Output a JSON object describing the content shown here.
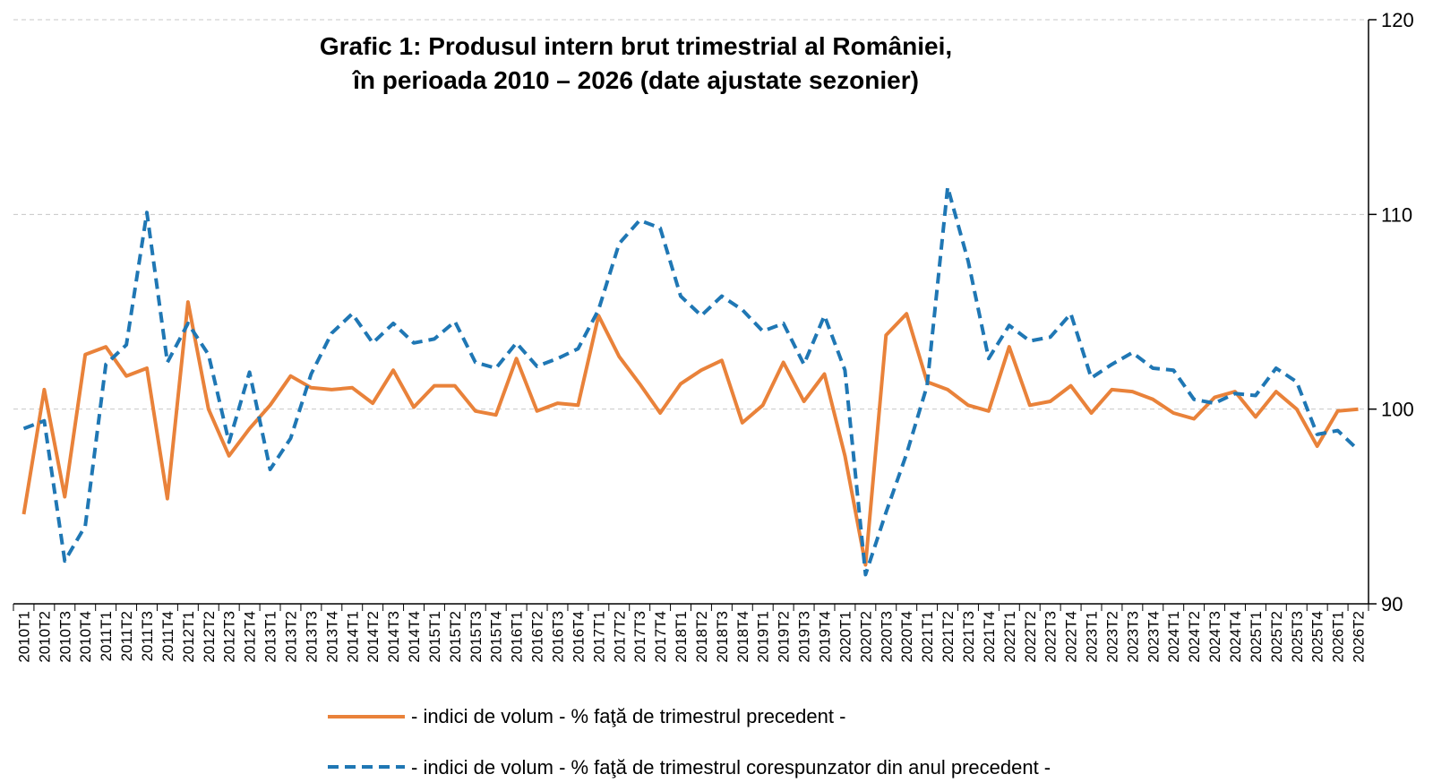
{
  "chart_data": {
    "type": "line",
    "title": "Grafic 1: Produsul intern brut trimestrial al României,",
    "subtitle": "în perioada 2010 – 2026 (date ajustate sezonier)",
    "ylim": [
      90,
      120
    ],
    "yticks": [
      "90",
      "100",
      "110",
      "120"
    ],
    "grid": true,
    "legend_position": "bottom",
    "categories": [
      "2010T1",
      "2010T2",
      "2010T3",
      "2010T4",
      "2011T1",
      "2011T2",
      "2011T3",
      "2011T4",
      "2012T1",
      "2012T2",
      "2012T3",
      "2012T4",
      "2013T1",
      "2013T2",
      "2013T3",
      "2013T4",
      "2014T1",
      "2014T2",
      "2014T3",
      "2014T4",
      "2015T1",
      "2015T2",
      "2015T3",
      "2015T4",
      "2016T1",
      "2016T2",
      "2016T3",
      "2016T4",
      "2017T1",
      "2017T2",
      "2017T3",
      "2017T4",
      "2018T1",
      "2018T2",
      "2018T3",
      "2018T4",
      "2019T1",
      "2019T2",
      "2019T3",
      "2019T4",
      "2020T1",
      "2020T2",
      "2020T3",
      "2020T4",
      "2021T1",
      "2021T2",
      "2021T3",
      "2021T4",
      "2022T1",
      "2022T2",
      "2022T3",
      "2022T4",
      "2023T1",
      "2023T2",
      "2023T3",
      "2023T4",
      "2024T1",
      "2024T2",
      "2024T3",
      "2024T4",
      "2025T1",
      "2025T2",
      "2025T3",
      "2025T4",
      "2026T1",
      "2026T2"
    ],
    "series": [
      {
        "name": "- indici de volum - % faţă de trimestrul precedent -",
        "color": "#e9823a",
        "style": "solid",
        "values": [
          94.6,
          101.0,
          95.5,
          102.8,
          103.2,
          101.7,
          102.1,
          95.4,
          105.5,
          100.0,
          97.6,
          99.0,
          100.2,
          101.7,
          101.1,
          101.0,
          101.1,
          100.3,
          102.0,
          100.1,
          101.2,
          101.2,
          99.9,
          99.7,
          102.6,
          99.9,
          100.3,
          100.2,
          104.8,
          102.7,
          101.3,
          99.8,
          101.3,
          102.0,
          102.5,
          99.3,
          100.2,
          102.4,
          100.4,
          101.8,
          97.6,
          92.0,
          103.8,
          104.9,
          101.4,
          101.0,
          100.2,
          99.9,
          103.2,
          100.2,
          100.4,
          101.2,
          99.8,
          101.0,
          100.9,
          100.5,
          99.8,
          99.5,
          100.6,
          100.9,
          99.6,
          100.9,
          100.0,
          98.1,
          99.9,
          100.0
        ]
      },
      {
        "name": "- indici de volum - % faţă de trimestrul corespunzator din anul precedent -",
        "color": "#1f77b4",
        "style": "dashed",
        "values": [
          99.0,
          99.4,
          92.2,
          94.0,
          102.3,
          103.3,
          110.1,
          102.4,
          104.4,
          102.8,
          98.3,
          101.9,
          96.9,
          98.5,
          101.8,
          103.9,
          104.9,
          103.4,
          104.4,
          103.4,
          103.6,
          104.5,
          102.4,
          102.1,
          103.4,
          102.2,
          102.6,
          103.1,
          105.1,
          108.5,
          109.7,
          109.3,
          105.8,
          104.8,
          105.8,
          105.1,
          104.0,
          104.4,
          102.3,
          104.8,
          102.0,
          91.5,
          94.7,
          97.7,
          101.2,
          111.4,
          107.6,
          102.6,
          104.3,
          103.5,
          103.7,
          104.9,
          101.6,
          102.3,
          102.9,
          102.1,
          102.0,
          100.5,
          100.3,
          100.8,
          100.7,
          102.1,
          101.4,
          98.7,
          98.9,
          97.9
        ]
      }
    ]
  }
}
